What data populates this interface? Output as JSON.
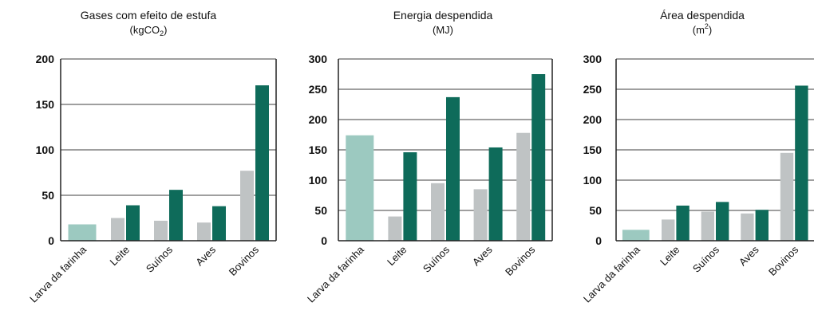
{
  "chart_data": [
    {
      "type": "bar",
      "title": "Gases com efeito de estufa",
      "unit_prefix": "(kgCO",
      "unit_sub": "2",
      "unit_suffix": ")",
      "ylim": [
        0,
        200
      ],
      "yticks": [
        "0",
        "50",
        "100",
        "150",
        "200"
      ],
      "categories": [
        "Larva da farinha",
        "Leite",
        "Suínos",
        "Aves",
        "Bovinos"
      ],
      "series": [
        {
          "color": "#bfc3c4",
          "values": [
            18,
            25,
            22,
            20,
            77
          ]
        },
        {
          "color": "#0e6b5a",
          "values": [
            null,
            39,
            56,
            38,
            171
          ]
        }
      ],
      "single_color": "#9cc9c0"
    },
    {
      "type": "bar",
      "title": "Energia despendida",
      "unit_prefix": "(MJ)",
      "unit_sub": "",
      "unit_suffix": "",
      "ylim": [
        0,
        300
      ],
      "yticks": [
        "0",
        "50",
        "100",
        "150",
        "200",
        "250",
        "300"
      ],
      "categories": [
        "Larva da farinha",
        "Leite",
        "Suínos",
        "Aves",
        "Bovinos"
      ],
      "series": [
        {
          "color": "#bfc3c4",
          "values": [
            174,
            40,
            95,
            85,
            178
          ]
        },
        {
          "color": "#0e6b5a",
          "values": [
            null,
            146,
            237,
            154,
            275
          ]
        }
      ],
      "single_color": "#9cc9c0"
    },
    {
      "type": "bar",
      "title": "Área despendida",
      "unit_prefix": "(m",
      "unit_sup": "2",
      "unit_suffix": ")",
      "ylim": [
        0,
        300
      ],
      "yticks": [
        "0",
        "50",
        "100",
        "150",
        "200",
        "250",
        "300"
      ],
      "categories": [
        "Larva da farinha",
        "Leite",
        "Suínos",
        "Aves",
        "Bovinos"
      ],
      "series": [
        {
          "color": "#bfc3c4",
          "values": [
            18,
            35,
            48,
            45,
            145
          ]
        },
        {
          "color": "#0e6b5a",
          "values": [
            null,
            58,
            64,
            51,
            256
          ]
        }
      ],
      "single_color": "#9cc9c0"
    }
  ]
}
